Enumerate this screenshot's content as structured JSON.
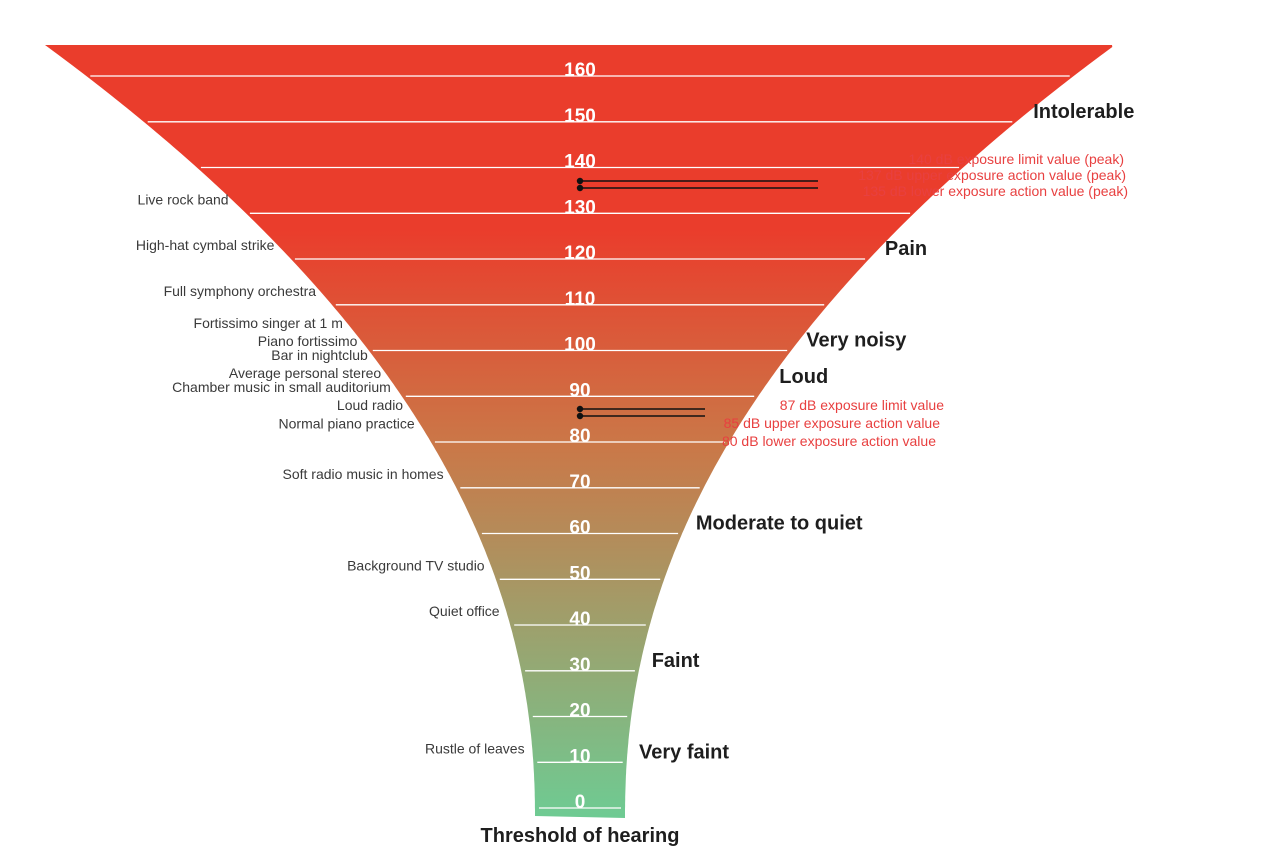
{
  "ticks": [
    "160",
    "150",
    "140",
    "130",
    "120",
    "110",
    "100",
    "90",
    "80",
    "70",
    "60",
    "50",
    "40",
    "30",
    "20",
    "10",
    "0"
  ],
  "sources": [
    {
      "label": "Live rock band",
      "db": 130
    },
    {
      "label": "High-hat cymbal strike",
      "db": 120
    },
    {
      "label": "Full symphony orchestra",
      "db": 110
    },
    {
      "label": "Fortissimo singer at 1 m",
      "db": 103
    },
    {
      "label": "Piano fortissimo",
      "db": 99
    },
    {
      "label": "Bar in nightclub",
      "db": 96
    },
    {
      "label": "Average personal stereo",
      "db": 92
    },
    {
      "label": "Chamber music in small auditorium",
      "db": 89
    },
    {
      "label": "Loud radio",
      "db": 85
    },
    {
      "label": "Normal piano practice",
      "db": 81
    },
    {
      "label": "Soft radio music in homes",
      "db": 70
    },
    {
      "label": "Background TV studio",
      "db": 50
    },
    {
      "label": "Quiet office",
      "db": 40
    },
    {
      "label": "Rustle of leaves",
      "db": 10
    }
  ],
  "categories": [
    {
      "label": "Intolerable",
      "db": 150
    },
    {
      "label": "Pain",
      "db": 120
    },
    {
      "label": "Very noisy",
      "db": 100
    },
    {
      "label": "Loud",
      "db": 92
    },
    {
      "label": "Moderate to quiet",
      "db": 60
    },
    {
      "label": "Faint",
      "db": 30
    },
    {
      "label": "Very faint",
      "db": 10
    }
  ],
  "limit_groups": [
    {
      "markers": [
        137,
        135
      ],
      "labels": [
        {
          "text": "140 dB exposure limit value (peak)",
          "db": 140
        },
        {
          "text": "137 dB upper exposure action value (peak)",
          "db": 137
        },
        {
          "text": "135 dB lower exposure action value (peak)",
          "db": 135
        }
      ]
    },
    {
      "markers": [
        87,
        85
      ],
      "labels": [
        {
          "text": "87 dB exposure limit value",
          "db": 87
        },
        {
          "text": "85 dB upper exposure action value",
          "db": 85
        },
        {
          "text": "80 dB lower exposure action value",
          "db": 80
        }
      ]
    }
  ],
  "footer": "Threshold of hearing",
  "colors": {
    "top": "#ea3d2c",
    "mid": "#ca7848",
    "bottom": "#6ecb93",
    "limit": "#e84040",
    "tick_text": "#ffffff"
  }
}
